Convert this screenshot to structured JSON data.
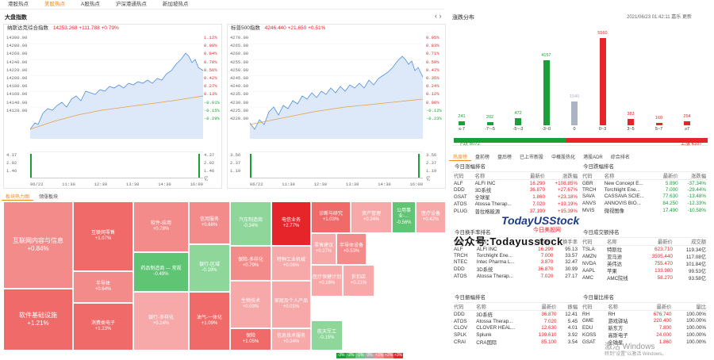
{
  "nav": {
    "tabs": [
      "港股热点",
      "美股热点",
      "A股热点",
      "沪深港通热点",
      "新加坡热点"
    ],
    "active": 1
  },
  "left_title": "大盘指数",
  "nasdaq": {
    "name": "纳斯达克综合指数",
    "value": "14253.268",
    "change": "+111.788",
    "pct": "+0.79%",
    "yticks": [
      "14300.00",
      "14280.00",
      "14260.00",
      "14240.00",
      "14220.00",
      "14200.00",
      "14180.00",
      "14160.00",
      "14140.00",
      "14120.00"
    ],
    "pticks": [
      "1.12%",
      "0.98%",
      "0.84%",
      "0.70%",
      "0.56%",
      "0.42%",
      "0.27%",
      "0.13%",
      "-0.01%",
      "-0.15%",
      "-0.29%"
    ],
    "vticks": [
      "4.37",
      "2.92",
      "1.46"
    ],
    "vticks_r": [
      "4.37",
      "2.92",
      "1.46",
      "亿"
    ],
    "xticks": [
      "06/22",
      "11:30",
      "12:30",
      "13:30",
      "14:30",
      "16:00"
    ]
  },
  "sp500": {
    "name": "标普500指数",
    "value": "4246.440",
    "change": "+21.650",
    "pct": "+0.51%",
    "yticks": [
      "4270.00",
      "4265.00",
      "4260.00",
      "4255.00",
      "4250.00",
      "4245.00",
      "4240.00",
      "4235.00",
      "4230.00",
      "4225.00",
      "4220.00"
    ],
    "pticks": [
      "0.95%",
      "0.83%",
      "0.71%",
      "0.59%",
      "0.47%",
      "0.35%",
      "0.24%",
      "0.12%",
      "0.00%",
      "-0.12%",
      "-0.23%"
    ],
    "vticks": [
      "3.56",
      "2.37",
      "1.19"
    ],
    "vticks_r": [
      "3.56",
      "2.37",
      "1.19",
      "亿"
    ],
    "xticks": [
      "06/22",
      "11:30",
      "12:30",
      "13:30",
      "14:30",
      "16:00"
    ]
  },
  "heat": {
    "tabs": [
      "板块热力图",
      "领涨板块"
    ],
    "legend": [
      "-3%",
      "-2%",
      "-1%",
      "0%",
      "+1%",
      "+2%",
      "+3%"
    ],
    "tiles": [
      [
        "互联网内容与信息",
        "+0.84%"
      ],
      [
        "软件基础设施",
        "+1.21%"
      ],
      [
        "互联网零售",
        "+1.07%"
      ],
      [
        "半导体",
        "+0.64%"
      ],
      [
        "消费类电子",
        "+1.23%"
      ],
      [
        "软件-应用",
        "+0.78%"
      ],
      [
        "药品制造商 — 常规",
        "-0.49%"
      ],
      [
        "银行-多样化",
        "+0.14%"
      ],
      [
        "信用服务",
        "+0.68%"
      ],
      [
        "银行-区域",
        "-0.19%"
      ],
      [
        "油气-一体化",
        "+1.09%"
      ],
      [
        "汽车制造商",
        "-0.34%"
      ],
      [
        "电信业务",
        "+2.77%"
      ],
      [
        "诊断与研究",
        "+1.03%"
      ],
      [
        "资产管理",
        "+0.24%"
      ],
      [
        "公用事业-…",
        "-0.56%"
      ],
      [
        "医疗设备",
        "+0.42%"
      ],
      [
        "保险-多样化",
        "+0.79%"
      ],
      [
        "特种工业机械",
        "+0.06%"
      ],
      [
        "零售建议",
        "+0.27%"
      ],
      [
        "半导体设备",
        "+0.53%"
      ],
      [
        "生物技术",
        "+0.03%"
      ],
      [
        "家庭及个人产品",
        "+0.01%"
      ],
      [
        "保险",
        "+1.05%"
      ],
      [
        "信息技术服务",
        "+0.24%"
      ],
      [
        "航天军工",
        "-0.15%"
      ],
      [
        "医疗保健计划",
        "+0.16%"
      ],
      [
        "折扣店",
        "+0.21%"
      ],
      [
        "银行",
        "+0.85%"
      ]
    ]
  },
  "dist": {
    "title": "涨跌分布",
    "time": "2021/06/23 01:42:11 嘉乐 更新",
    "bars": [
      [
        "≤-7",
        "241"
      ],
      [
        "-7~-5",
        "202"
      ],
      [
        "-5~-3",
        "472"
      ],
      [
        "-3~0",
        "4157"
      ],
      [
        "0",
        "1540"
      ],
      [
        "0~3",
        "5560"
      ],
      [
        "3~5",
        "383"
      ],
      [
        "5~7",
        "160"
      ],
      [
        "≥7",
        "254"
      ]
    ],
    "down": "下跌 5072",
    "up": "上涨 6357"
  },
  "rtabs": [
    "热度榜",
    "盘前榜",
    "盘后榜",
    "已上市新股",
    "中概股热化",
    "港股ADR",
    "综合排名"
  ],
  "gain": {
    "title": "今日涨幅排名",
    "cols": [
      "代码",
      "名称",
      "最新价",
      "涨跌幅"
    ],
    "rows": [
      [
        "ALF",
        "ALFI INC",
        "16.290",
        "+108.85%"
      ],
      [
        "DDD",
        "3D系统",
        "36.870",
        "+27.67%"
      ],
      [
        "GSAT",
        "全球星",
        "1.860",
        "+23.18%"
      ],
      [
        "ATOS",
        "Atossa Therap...",
        "7.020",
        "+19.19%"
      ],
      [
        "PLUG",
        "普拉格能源",
        "37.190",
        "+15.39%"
      ]
    ]
  },
  "loss": {
    "title": "今日跌幅排名",
    "cols": [
      "代码",
      "名称",
      "最新价",
      "涨跌幅"
    ],
    "rows": [
      [
        "GBR",
        "New Concept E...",
        "5.890",
        "-37.34%"
      ],
      [
        "TRCH",
        "Torchlight Ene...",
        "7.000",
        "-29.44%"
      ],
      [
        "SAVA",
        "CASSAVA SCIE...",
        "77.630",
        "-13.48%"
      ],
      [
        "ANVS",
        "ANNOVIS BIO...",
        "84.250",
        "-12.33%"
      ],
      [
        "MVIS",
        "微视图像",
        "17.490",
        "-10.58%"
      ]
    ]
  },
  "turn": {
    "title": "今日换手率排名",
    "cols": [
      "代码",
      "名称",
      "最新价",
      "换手率"
    ],
    "rows": [
      [
        "ALF",
        "ALFI INC",
        "16.290",
        "95.13"
      ],
      [
        "TRCH",
        "Torchlight Ene...",
        "7.000",
        "33.57"
      ],
      [
        "NTEC",
        "Intec Pharma L...",
        "3.870",
        "32.47"
      ],
      [
        "DDD",
        "3D系统",
        "36.870",
        "30.99"
      ],
      [
        "ATOS",
        "Atossa Therap...",
        "7.020",
        "27.17"
      ]
    ]
  },
  "amt": {
    "title": "今日成交额排名",
    "cols": [
      "代码",
      "名称",
      "最新价",
      "成交额"
    ],
    "rows": [
      [
        "TSLA",
        "特斯拉",
        "623.710",
        "119.34亿"
      ],
      [
        "AMZN",
        "亚马逊",
        "3505.440",
        "117.08亿"
      ],
      [
        "NVDA",
        "英伟达",
        "755.470",
        "101.84亿"
      ],
      [
        "AAPL",
        "苹果",
        "133.980",
        "99.53亿"
      ],
      [
        "AMC",
        "AMC院线",
        "58.270",
        "93.58亿"
      ]
    ]
  },
  "amp": {
    "title": "今日振幅排名",
    "cols": [
      "代码",
      "名称",
      "最新价",
      "振幅"
    ],
    "rows": [
      [
        "DDD",
        "3D系统",
        "36.870",
        "12.41"
      ],
      [
        "ATOS",
        "Atossa Therap...",
        "7.020",
        "5.45"
      ],
      [
        "CLOV",
        "CLOVER HEAL...",
        "12.630",
        "4.01"
      ],
      [
        "SPLK",
        "Splunk",
        "139.610",
        "3.92"
      ],
      [
        "CRAI",
        "CRA国际",
        "85.100",
        "3.54"
      ]
    ]
  },
  "vol": {
    "title": "今日量比排名",
    "cols": [
      "代码",
      "名称",
      "最新价",
      "量比"
    ],
    "rows": [
      [
        "RH",
        "RH",
        "676.740",
        "100.00%"
      ],
      [
        "GME",
        "游戏驿站",
        "220.400",
        "100.00%"
      ],
      [
        "EDU",
        "新东方",
        "7.800",
        "100.00%"
      ],
      [
        "KOSS",
        "高斯电子",
        "24.000",
        "100.00%"
      ],
      [
        "GSAT",
        "全球星",
        "1.860",
        "100.00%"
      ]
    ]
  },
  "watermark": {
    "a": "公众号:Todayusstock",
    "b": "TodayUSStock",
    "c": "今日美股网",
    "d": "激活 Windows",
    "e": "转到\"设置\"以激活 Windows。"
  }
}
